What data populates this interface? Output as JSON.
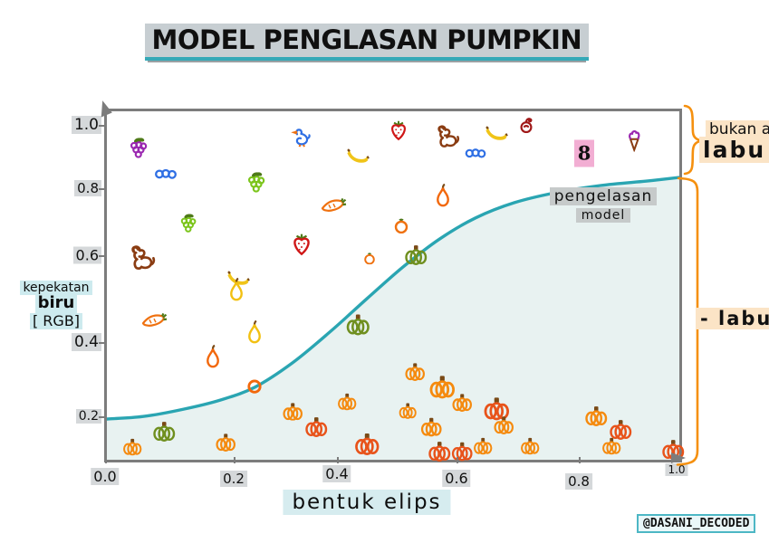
{
  "title": "MODEL PENGLASAN PUMPKIN",
  "axis": {
    "x_label": "bentuk elips",
    "y_label_lines": [
      "kepekatan",
      "biru",
      "[ RGB]"
    ],
    "x_ticks": [
      "0.0",
      "0.2",
      "0.4",
      "0.6",
      "0.8",
      "1.0"
    ],
    "y_ticks": [
      "1.0",
      "0.8",
      "0.6",
      "0.4",
      "0.2"
    ]
  },
  "labels": {
    "curve_line1": "pengelasan",
    "curve_line2": "model",
    "not_pumpkin_line1": "bukan a",
    "not_pumpkin_line2": "labu",
    "pumpkin_bracket": "- labu",
    "credit": "@DASANI_DECODED"
  },
  "colors": {
    "curve": "#2aa5b2",
    "curve_fill": "#e8f2f1",
    "bracket": "#f5900f",
    "axis": "#7c7c7c",
    "highlight_gray": "#d5d8da",
    "highlight_cyan": "#d6ecef",
    "highlight_peach": "#fbe4c6",
    "highlight_pink": "#f2aed3",
    "palette": {
      "orange": "#f58a0e",
      "redOrange": "#e8531a",
      "olive": "#6f8f1f",
      "purple": "#9a27b0",
      "lightGreen": "#7cc51c",
      "leafGreen": "#4e7a18",
      "blue": "#2f6fe4",
      "red": "#cf1717",
      "darkRed": "#a01818",
      "yellow": "#f0c419",
      "gold": "#f2c012",
      "pearOrange": "#f2680c",
      "carrot": "#ef7110",
      "brown": "#8a3c12",
      "stem": "#7a4a16",
      "pink": "#f2aed3"
    }
  },
  "chart_data": {
    "type": "scatter",
    "title": "MODEL PENGLASAN PUMPKIN",
    "xlabel": "bentuk elips",
    "ylabel": "kepekatan biru [RGB]",
    "xlim": [
      0,
      1
    ],
    "ylim": [
      0,
      1.05
    ],
    "grid": false,
    "decision_curve": {
      "name": "pengelasan model",
      "x": [
        0.0,
        0.063,
        0.134,
        0.198,
        0.258,
        0.324,
        0.391,
        0.454,
        0.517,
        0.581,
        0.644,
        0.712,
        0.783,
        0.862,
        0.941,
        1.0
      ],
      "y": [
        0.2,
        0.207,
        0.227,
        0.252,
        0.287,
        0.354,
        0.441,
        0.53,
        0.617,
        0.694,
        0.752,
        0.794,
        0.821,
        0.841,
        0.853,
        0.863
      ]
    },
    "regions": [
      {
        "label": "bukan a labu",
        "meaning": "above curve"
      },
      {
        "label": "labu",
        "meaning": "below curve"
      }
    ],
    "points": [
      {
        "type": "grape",
        "variant": "purple",
        "x": 0.055,
        "y": 0.94,
        "s": 1.1
      },
      {
        "type": "blueberry",
        "variant": "blue",
        "x": 0.103,
        "y": 0.871,
        "s": 1.0
      },
      {
        "type": "duck",
        "variant": "blue",
        "x": 0.34,
        "y": 0.97,
        "s": 1.0
      },
      {
        "type": "grape",
        "variant": "green",
        "x": 0.261,
        "y": 0.846,
        "s": 1.1
      },
      {
        "type": "grape",
        "variant": "green",
        "x": 0.142,
        "y": 0.734,
        "s": 1.0
      },
      {
        "type": "dog",
        "variant": "brown",
        "x": 0.063,
        "y": 0.642,
        "s": 1.2
      },
      {
        "type": "strawberry",
        "variant": "red",
        "x": 0.34,
        "y": 0.677,
        "s": 1.1
      },
      {
        "type": "banana",
        "variant": "yellow",
        "x": 0.229,
        "y": 0.585,
        "s": 1.0
      },
      {
        "type": "strawberry",
        "variant": "red",
        "x": 0.51,
        "y": 0.99,
        "s": 1.0
      },
      {
        "type": "dog",
        "variant": "brown",
        "x": 0.597,
        "y": 0.975,
        "s": 1.1
      },
      {
        "type": "banana",
        "variant": "yellow",
        "x": 0.68,
        "y": 0.983,
        "s": 1.0
      },
      {
        "type": "banana",
        "variant": "yellow",
        "x": 0.438,
        "y": 0.92,
        "s": 1.0
      },
      {
        "type": "blueberry",
        "variant": "blue",
        "x": 0.644,
        "y": 0.928,
        "s": 0.95
      },
      {
        "type": "cherry",
        "variant": "darkRed",
        "x": 0.733,
        "y": 1.005,
        "s": 1.0
      },
      {
        "type": "eight",
        "variant": "pink",
        "x": 0.834,
        "y": 0.925,
        "s": 1.0,
        "label": "8"
      },
      {
        "type": "icecream",
        "variant": "purple",
        "x": 0.921,
        "y": 0.962,
        "s": 1.0
      },
      {
        "type": "pear",
        "variant": "orange",
        "x": 0.587,
        "y": 0.811,
        "s": 1.0
      },
      {
        "type": "carrot",
        "variant": "orange",
        "x": 0.396,
        "y": 0.784,
        "s": 1.0
      },
      {
        "type": "tomato",
        "variant": "orange",
        "x": 0.514,
        "y": 0.729,
        "s": 1.0
      },
      {
        "type": "tomato",
        "variant": "orange",
        "x": 0.459,
        "y": 0.64,
        "s": 0.8
      },
      {
        "type": "pumpkin",
        "variant": "green",
        "x": 0.54,
        "y": 0.647,
        "s": 1.0
      },
      {
        "type": "ring",
        "variant": "orange",
        "x": 0.258,
        "y": 0.287,
        "s": 1.0
      },
      {
        "type": "pear",
        "variant": "yellow",
        "x": 0.226,
        "y": 0.553,
        "s": 1.0
      },
      {
        "type": "carrot",
        "variant": "orange",
        "x": 0.082,
        "y": 0.468,
        "s": 1.0
      },
      {
        "type": "pear",
        "variant": "yellow",
        "x": 0.258,
        "y": 0.436,
        "s": 1.0
      },
      {
        "type": "pear",
        "variant": "orange",
        "x": 0.185,
        "y": 0.369,
        "s": 1.0
      },
      {
        "type": "pumpkin",
        "variant": "green",
        "x": 0.438,
        "y": 0.456,
        "s": 1.05
      },
      {
        "type": "pumpkin",
        "variant": "orange",
        "x": 0.044,
        "y": 0.121,
        "s": 0.85
      },
      {
        "type": "pumpkin",
        "variant": "green",
        "x": 0.1,
        "y": 0.163,
        "s": 1.0
      },
      {
        "type": "pumpkin",
        "variant": "orange",
        "x": 0.207,
        "y": 0.133,
        "s": 0.9
      },
      {
        "type": "pumpkin",
        "variant": "orange",
        "x": 0.324,
        "y": 0.218,
        "s": 0.9
      },
      {
        "type": "pumpkin",
        "variant": "red",
        "x": 0.366,
        "y": 0.176,
        "s": 1.0
      },
      {
        "type": "pumpkin",
        "variant": "orange",
        "x": 0.419,
        "y": 0.245,
        "s": 0.85
      },
      {
        "type": "pumpkin",
        "variant": "red",
        "x": 0.454,
        "y": 0.128,
        "s": 1.1
      },
      {
        "type": "pumpkin",
        "variant": "orange",
        "x": 0.538,
        "y": 0.327,
        "s": 0.9
      },
      {
        "type": "pumpkin",
        "variant": "orange",
        "x": 0.585,
        "y": 0.284,
        "s": 1.15
      },
      {
        "type": "pumpkin",
        "variant": "orange",
        "x": 0.62,
        "y": 0.242,
        "s": 0.9
      },
      {
        "type": "pumpkin",
        "variant": "red",
        "x": 0.68,
        "y": 0.224,
        "s": 1.15
      },
      {
        "type": "pumpkin",
        "variant": "orange",
        "x": 0.525,
        "y": 0.22,
        "s": 0.8
      },
      {
        "type": "pumpkin",
        "variant": "orange",
        "x": 0.566,
        "y": 0.175,
        "s": 0.95
      },
      {
        "type": "pumpkin",
        "variant": "orange",
        "x": 0.693,
        "y": 0.18,
        "s": 0.9
      },
      {
        "type": "pumpkin",
        "variant": "red",
        "x": 0.581,
        "y": 0.108,
        "s": 1.0
      },
      {
        "type": "pumpkin",
        "variant": "red",
        "x": 0.62,
        "y": 0.108,
        "s": 0.95
      },
      {
        "type": "pumpkin",
        "variant": "orange",
        "x": 0.657,
        "y": 0.124,
        "s": 0.85
      },
      {
        "type": "pumpkin",
        "variant": "orange",
        "x": 0.739,
        "y": 0.124,
        "s": 0.85
      },
      {
        "type": "pumpkin",
        "variant": "orange",
        "x": 0.854,
        "y": 0.205,
        "s": 1.0
      },
      {
        "type": "pumpkin",
        "variant": "red",
        "x": 0.897,
        "y": 0.169,
        "s": 1.0
      },
      {
        "type": "pumpkin",
        "variant": "orange",
        "x": 0.881,
        "y": 0.124,
        "s": 0.85
      },
      {
        "type": "pumpkin",
        "variant": "red",
        "x": 0.989,
        "y": 0.112,
        "s": 1.0
      }
    ]
  }
}
